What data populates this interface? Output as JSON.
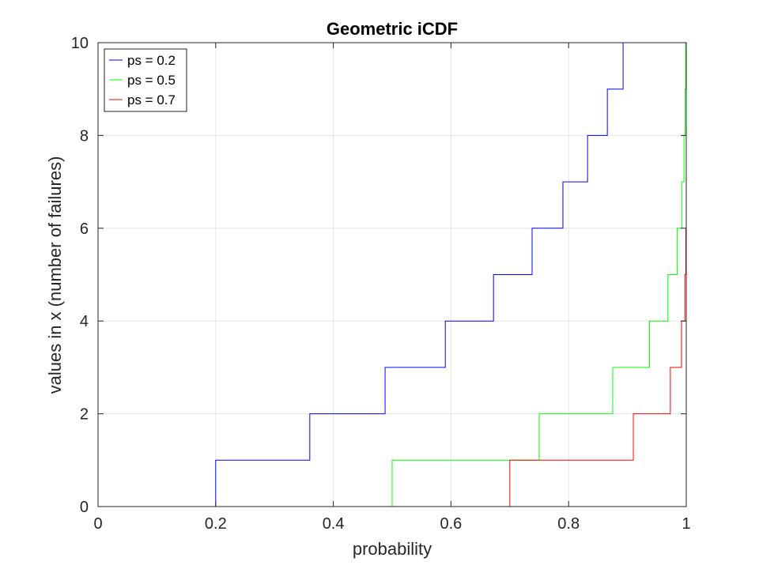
{
  "chart_data": {
    "type": "line",
    "title": "Geometric iCDF",
    "xlabel": "probability",
    "ylabel": "values in x (number of failures)",
    "xlim": [
      0,
      1
    ],
    "ylim": [
      0,
      10
    ],
    "xticks": [
      0,
      0.2,
      0.4,
      0.6,
      0.8,
      1
    ],
    "yticks": [
      0,
      2,
      4,
      6,
      8,
      10
    ],
    "xtick_labels": [
      "0",
      "0.2",
      "0.4",
      "0.6",
      "0.8",
      "1"
    ],
    "ytick_labels": [
      "0",
      "2",
      "4",
      "6",
      "8",
      "10"
    ],
    "grid": true,
    "legend_position": "top-left",
    "series": [
      {
        "name": "ps = 0.2",
        "color": "#0000ff",
        "p": 0.2,
        "x": [
          0,
          0.2,
          0.36,
          0.488,
          0.5904,
          0.6723,
          0.7379,
          0.7903,
          0.8322,
          0.8658,
          0.8926
        ],
        "values": [
          0,
          1,
          2,
          3,
          4,
          5,
          6,
          7,
          8,
          9,
          10
        ]
      },
      {
        "name": "ps = 0.5",
        "color": "#00ff00",
        "p": 0.5,
        "x": [
          0,
          0.5,
          0.75,
          0.875,
          0.9375,
          0.9688,
          0.9844,
          0.9922,
          0.9961,
          0.998,
          0.999
        ],
        "values": [
          0,
          1,
          2,
          3,
          4,
          5,
          6,
          7,
          8,
          9,
          10
        ]
      },
      {
        "name": "ps = 0.7",
        "color": "#ff0000",
        "p": 0.7,
        "x": [
          0,
          0.7,
          0.91,
          0.973,
          0.9919,
          0.9976,
          0.9993
        ],
        "values": [
          0,
          1,
          2,
          3,
          4,
          5,
          6
        ]
      }
    ]
  }
}
